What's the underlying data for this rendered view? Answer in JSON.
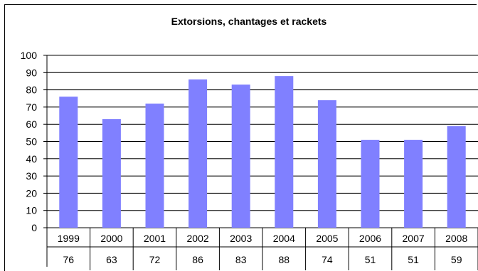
{
  "chart_data": {
    "type": "bar",
    "title": "Extorsions, chantages et rackets",
    "categories": [
      "1999",
      "2000",
      "2001",
      "2002",
      "2003",
      "2004",
      "2005",
      "2006",
      "2007",
      "2008"
    ],
    "values": [
      76,
      63,
      72,
      86,
      83,
      88,
      74,
      51,
      51,
      59
    ],
    "ylim": [
      0,
      100
    ],
    "yticks": [
      0,
      10,
      20,
      30,
      40,
      50,
      60,
      70,
      80,
      90,
      100
    ],
    "grid": true,
    "legend": "none",
    "data_table": true,
    "bar_color": "#8080ff"
  }
}
